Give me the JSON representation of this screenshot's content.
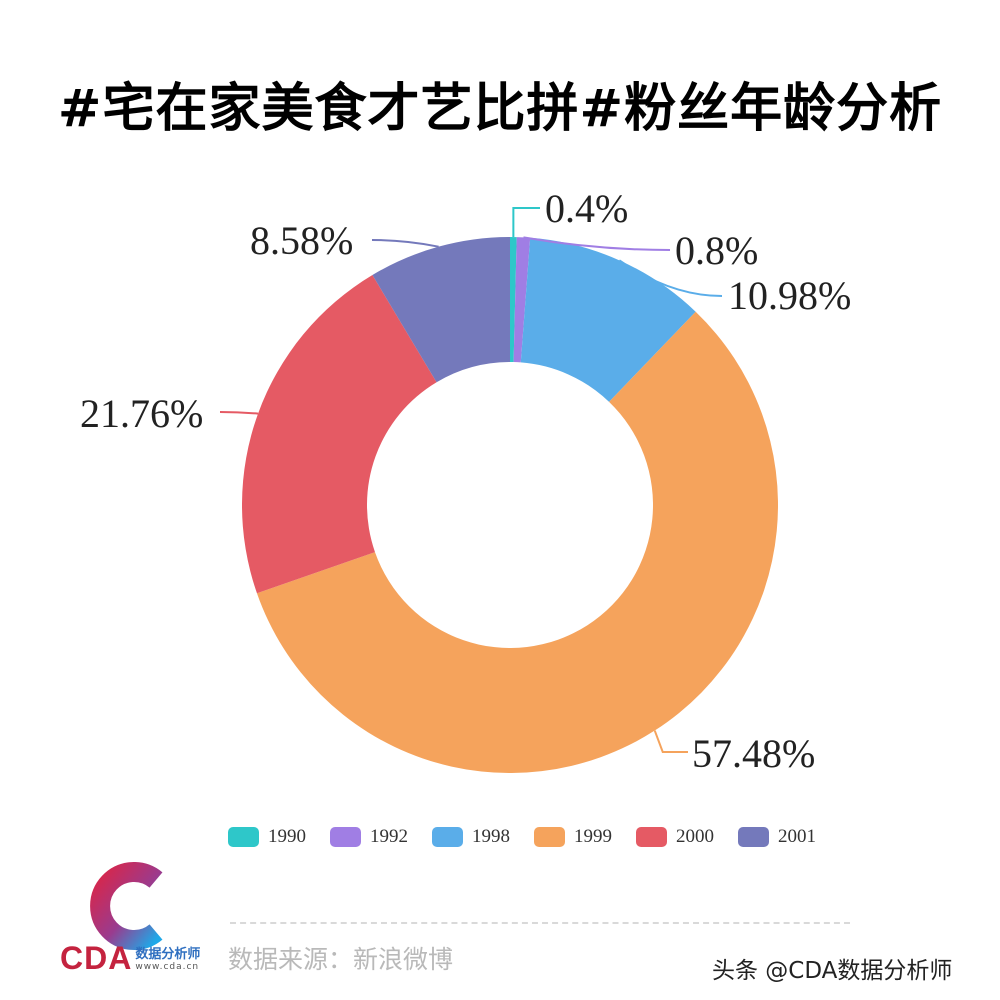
{
  "header": {
    "title": "#宅在家美食才艺比拼#粉丝年龄分析"
  },
  "chart_data": {
    "type": "pie",
    "variant": "donut",
    "title": "#宅在家美食才艺比拼#粉丝年龄分析",
    "categories": [
      "1990",
      "1992",
      "1998",
      "1999",
      "2000",
      "2001"
    ],
    "values": [
      0.4,
      0.8,
      10.98,
      57.48,
      21.76,
      8.58
    ],
    "labels": [
      "0.4%",
      "0.8%",
      "10.98%",
      "57.48%",
      "21.76%",
      "8.58%"
    ],
    "colors": [
      "#2ec7c9",
      "#a07ee4",
      "#5aade9",
      "#f5a35c",
      "#e55a64",
      "#7479bb"
    ],
    "unit": "%",
    "start_angle": "12 o'clock, clockwise",
    "legend_position": "bottom",
    "inner_radius_ratio": 0.53
  },
  "legend": {
    "items": [
      {
        "label": "1990",
        "color": "#2ec7c9"
      },
      {
        "label": "1992",
        "color": "#a07ee4"
      },
      {
        "label": "1998",
        "color": "#5aade9"
      },
      {
        "label": "1999",
        "color": "#f5a35c"
      },
      {
        "label": "2000",
        "color": "#e55a64"
      },
      {
        "label": "2001",
        "color": "#7479bb"
      }
    ]
  },
  "footer": {
    "logo_text": "CDA",
    "logo_cn": "数据分析师",
    "logo_url": "www.cda.cn",
    "source": "数据来源：新浪微博",
    "watermark": "头条 @CDA数据分析师"
  }
}
